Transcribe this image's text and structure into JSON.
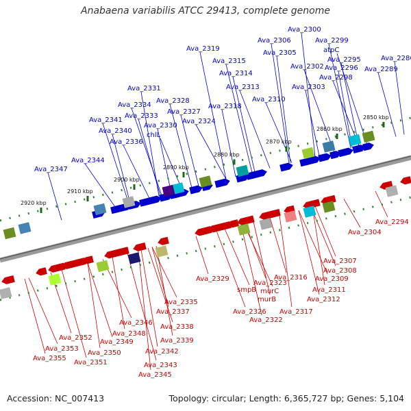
{
  "title": "Anabaena variabilis ATCC 29413, complete genome",
  "accession": "Accession: NC_007413",
  "stats": "Topology: circular; Length: 6,365,727 bp; Genes: 5,104",
  "colors": {
    "forward": "#0000cc",
    "reverse": "#cc0000",
    "backbone": "#777777",
    "tick": "#2a8a2a"
  },
  "ticks": [
    "2850 kbp",
    "2860 kbp",
    "2870 kbp",
    "2880 kbp",
    "2890 kbp",
    "2900 kbp",
    "2910 kbp",
    "2920 kbp"
  ],
  "top_labels": [
    "Ava_2300",
    "Ava_2306",
    "Ava_2299",
    "Ava_2319",
    "atpC",
    "Ava_2305",
    "Ava_2295",
    "Ava_2286",
    "Ava_2315",
    "Ava_2302",
    "Ava_2296",
    "Ava_2289",
    "Ava_2314",
    "Ava_2298",
    "Ava_2313",
    "Ava_2303",
    "Ava_2331",
    "Ava_2328",
    "Ava_2310",
    "Ava_2334",
    "Ava_2318",
    "Ava_2327",
    "Ava_2333",
    "Ava_2341",
    "Ava_2324",
    "Ava_2330",
    "Ava_2340",
    "chlL",
    "Ava_2336",
    "Ava_2344",
    "Ava_2347"
  ],
  "bottom_labels": [
    "Ava_2294",
    "Ava_2304",
    "Ava_2307",
    "Ava_2308",
    "Ava_2309",
    "Ava_2329",
    "Ava_2316",
    "Ava_2323",
    "smpB",
    "murC",
    "Ava_2311",
    "murB",
    "Ava_2312",
    "Ava_2335",
    "Ava_2326",
    "Ava_2317",
    "Ava_2337",
    "Ava_2322",
    "Ava_2338",
    "Ava_2346",
    "Ava_2348",
    "Ava_2339",
    "Ava_2352",
    "Ava_2349",
    "Ava_2353",
    "Ava_2350",
    "Ava_2342",
    "Ava_2355",
    "Ava_2351",
    "Ava_2343",
    "Ava_2345"
  ]
}
